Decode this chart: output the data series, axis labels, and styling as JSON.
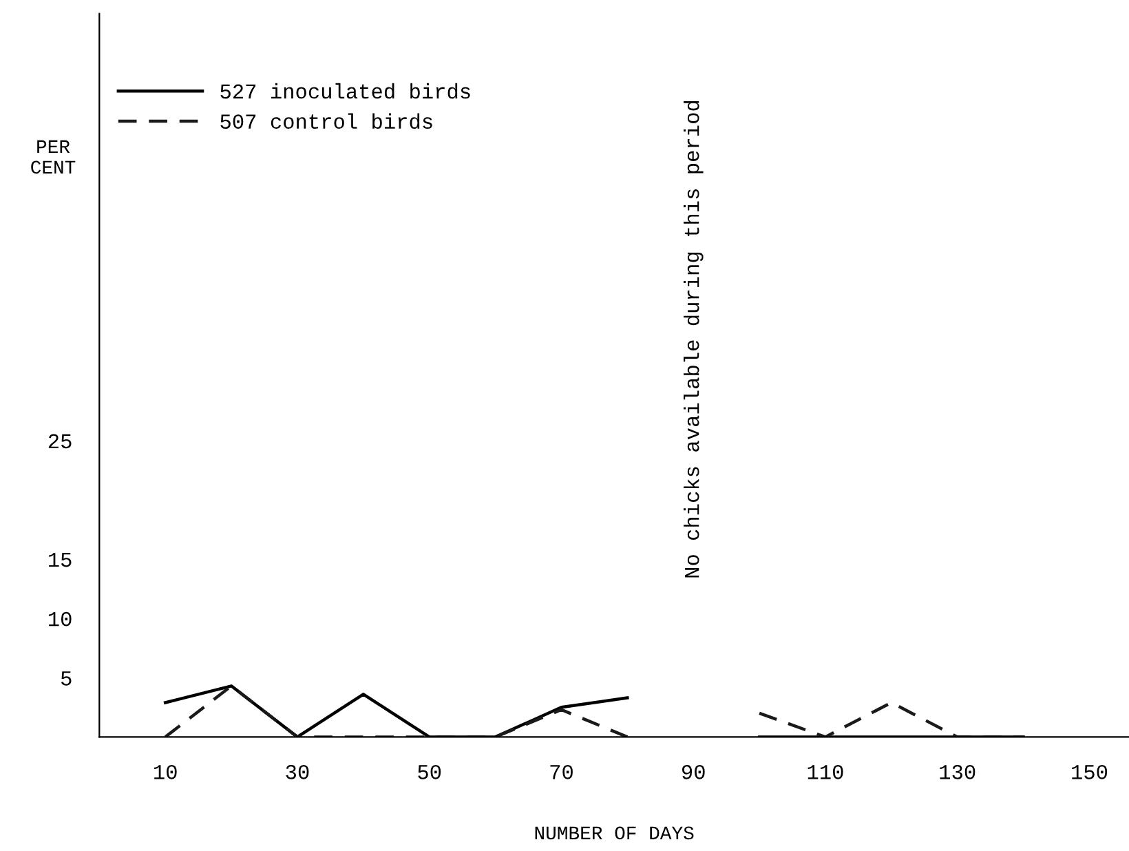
{
  "chart_data": {
    "type": "line",
    "xlabel": "NUMBER OF DAYS",
    "ylabel": "PER\nCENT",
    "xlim": [
      0,
      156
    ],
    "xticks": [
      10,
      30,
      50,
      70,
      90,
      110,
      130,
      150
    ],
    "ylim": [
      0,
      61
    ],
    "yticks": [
      5,
      10,
      15,
      25
    ],
    "grid": false,
    "legend": "top left",
    "series": [
      {
        "name": "527 inoculated birds",
        "color": "#000000",
        "line_style": "solid",
        "x": [
          10,
          20,
          30,
          40,
          50,
          60,
          70,
          80,
          90,
          100,
          110,
          120,
          130,
          140
        ],
        "values": [
          2.9,
          4.3,
          0,
          3.6,
          0,
          0,
          2.5,
          3.3,
          null,
          0,
          0,
          0,
          0,
          0
        ]
      },
      {
        "name": "507 control birds",
        "color": "#1a1a1a",
        "line_style": "dashed",
        "x": [
          10,
          20,
          30,
          40,
          50,
          60,
          70,
          80,
          90,
          100,
          110,
          120,
          130,
          140
        ],
        "values": [
          0,
          4.3,
          0,
          0,
          0,
          0,
          2.3,
          0,
          null,
          2.0,
          0,
          2.9,
          0,
          0
        ]
      }
    ],
    "annotations": [
      "No chicks available during this period"
    ]
  }
}
